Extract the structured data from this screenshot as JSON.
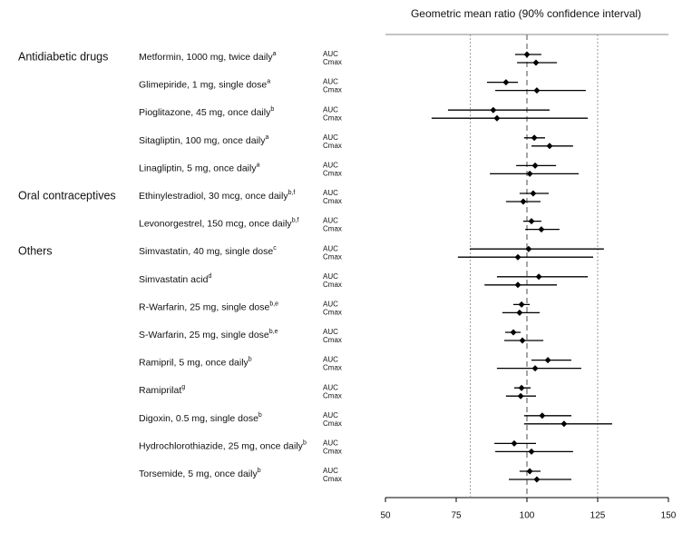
{
  "chart_data": {
    "type": "forest",
    "title": "Geometric mean ratio (90% confidence interval)",
    "xlim": [
      50,
      150
    ],
    "xticks": [
      50,
      75,
      100,
      125,
      150
    ],
    "reference_lines": [
      80,
      100,
      125
    ],
    "metrics": [
      "AUC",
      "Cmax"
    ],
    "color": "#000000",
    "groups": [
      {
        "name": "Antidiabetic drugs",
        "rows": [
          {
            "label": "Metformin, 1000 mg, twice daily",
            "note": "a",
            "values": [
              100.0,
              103.2
            ],
            "lower": [
              95.8,
              96.5
            ],
            "upper": [
              105.1,
              110.6
            ]
          },
          {
            "label": "Glimepiride, 1 mg, single dose",
            "note": "a",
            "values": [
              92.6,
              103.5
            ],
            "lower": [
              85.9,
              88.8
            ],
            "upper": [
              96.8,
              120.8
            ]
          },
          {
            "label": "Pioglitazone, 45 mg, once daily",
            "note": "b",
            "values": [
              88.1,
              89.4
            ],
            "lower": [
              72.1,
              66.3
            ],
            "upper": [
              108.0,
              121.5
            ]
          },
          {
            "label": "Sitagliptin, 100 mg, once daily",
            "note": "a",
            "values": [
              102.6,
              108.0
            ],
            "lower": [
              99.0,
              101.6
            ],
            "upper": [
              106.4,
              116.3
            ]
          },
          {
            "label": "Linagliptin, 5 mg, once daily",
            "note": "a",
            "values": [
              102.9,
              101.0
            ],
            "lower": [
              96.2,
              86.9
            ],
            "upper": [
              110.3,
              118.3
            ]
          }
        ]
      },
      {
        "name": "Oral contraceptives",
        "rows": [
          {
            "label": "Ethinylestradiol, 30 mcg, once daily",
            "note": "b,f",
            "values": [
              102.2,
              98.7
            ],
            "lower": [
              97.4,
              92.6
            ],
            "upper": [
              107.7,
              104.8
            ]
          },
          {
            "label": "Levonorgestrel, 150 mcg, once daily",
            "note": "b,f",
            "values": [
              101.6,
              105.1
            ],
            "lower": [
              98.7,
              99.4
            ],
            "upper": [
              105.1,
              111.5
            ]
          }
        ]
      },
      {
        "name": "Others",
        "rows": [
          {
            "label": "Simvastatin, 40 mg, single dose",
            "note": "c",
            "values": [
              100.6,
              96.8
            ],
            "lower": [
              79.8,
              75.6
            ],
            "upper": [
              127.2,
              123.4
            ]
          },
          {
            "label": "Simvastatin acid",
            "note": "d",
            "values": [
              104.2,
              96.8
            ],
            "lower": [
              89.4,
              85.0
            ],
            "upper": [
              121.5,
              110.6
            ]
          },
          {
            "label": "R-Warfarin, 25 mg, single dose",
            "note": "b,e",
            "values": [
              98.1,
              97.4
            ],
            "lower": [
              95.2,
              91.3
            ],
            "upper": [
              101.0,
              104.5
            ]
          },
          {
            "label": "S-Warfarin, 25 mg, single dose",
            "note": "b,e",
            "values": [
              95.2,
              98.4
            ],
            "lower": [
              92.3,
              92.0
            ],
            "upper": [
              97.8,
              105.8
            ]
          },
          {
            "label": "Ramipril, 5 mg, once daily",
            "note": "b",
            "values": [
              107.4,
              102.9
            ],
            "lower": [
              101.6,
              89.4
            ],
            "upper": [
              115.7,
              119.2
            ]
          },
          {
            "label": "Ramiprilat",
            "note": "g",
            "values": [
              98.1,
              97.8
            ],
            "lower": [
              95.5,
              92.6
            ],
            "upper": [
              101.3,
              103.2
            ]
          },
          {
            "label": "Digoxin, 0.5 mg, single dose",
            "note": "b",
            "values": [
              105.4,
              113.1
            ],
            "lower": [
              99.0,
              99.0
            ],
            "upper": [
              115.7,
              130.1
            ]
          },
          {
            "label": "Hydrochlorothiazide, 25 mg, once daily",
            "note": "b",
            "values": [
              95.5,
              101.6
            ],
            "lower": [
              88.5,
              88.8
            ],
            "upper": [
              103.2,
              116.3
            ]
          },
          {
            "label": "Torsemide, 5 mg, once daily",
            "note": "b",
            "values": [
              101.0,
              103.5
            ],
            "lower": [
              97.4,
              93.6
            ],
            "upper": [
              104.8,
              115.7
            ]
          }
        ]
      }
    ]
  }
}
